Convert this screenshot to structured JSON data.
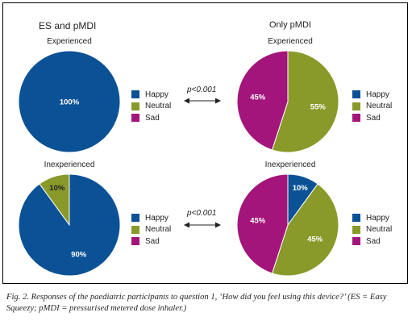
{
  "colors": {
    "Happy": "#0b5196",
    "Neutral": "#8a9a2a",
    "Sad": "#a3157a"
  },
  "chart_data": [
    {
      "type": "pie",
      "group": "ES and pMDI",
      "title": "Experienced",
      "categories": [
        "Happy",
        "Neutral",
        "Sad"
      ],
      "values": [
        100,
        0,
        0
      ],
      "labels": [
        "100%",
        "",
        ""
      ]
    },
    {
      "type": "pie",
      "group": "Only pMDI",
      "title": "Experienced",
      "categories": [
        "Happy",
        "Neutral",
        "Sad"
      ],
      "values": [
        0,
        55,
        45
      ],
      "labels": [
        "",
        "55%",
        "45%"
      ]
    },
    {
      "type": "pie",
      "group": "ES and pMDI",
      "title": "Inexperienced",
      "categories": [
        "Happy",
        "Neutral",
        "Sad"
      ],
      "values": [
        90,
        10,
        0
      ],
      "labels": [
        "90%",
        "10%",
        ""
      ]
    },
    {
      "type": "pie",
      "group": "Only pMDI",
      "title": "Inexperienced",
      "categories": [
        "Happy",
        "Neutral",
        "Sad"
      ],
      "values": [
        10,
        45,
        45
      ],
      "labels": [
        "10%",
        "45%",
        "45%"
      ]
    }
  ],
  "headers": {
    "left": "ES and pMDI",
    "right": "Only pMDI"
  },
  "subtitles": {
    "experienced": "Experienced",
    "inexperienced": "Inexperienced"
  },
  "pvalue": "p<0.001",
  "legend": [
    "Happy",
    "Neutral",
    "Sad"
  ],
  "caption": "Fig. 2. Responses of the paediatric participants to question 1, ‘How did you feel using this device?’ (ES = Easy Squeezy; pMDI = pressurised metered dose inhaler.)"
}
